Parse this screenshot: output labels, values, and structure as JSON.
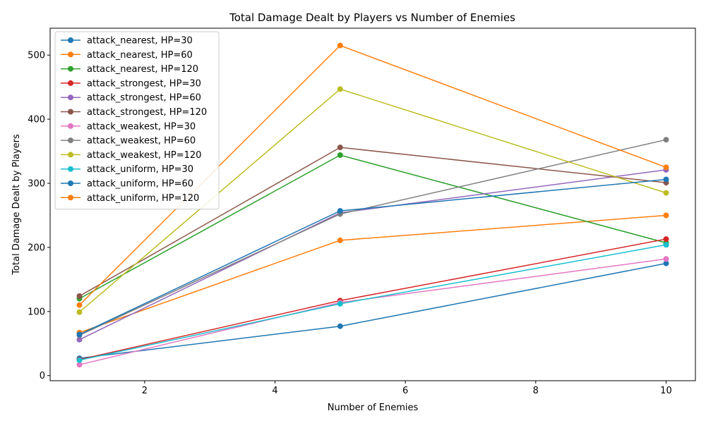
{
  "chart_data": {
    "type": "line",
    "title": "Total Damage Dealt by Players vs Number of Enemies",
    "xlabel": "Number of Enemies",
    "ylabel": "Total Damage Dealt by Players",
    "xlim": [
      0.55,
      10.45
    ],
    "ylim": [
      -8,
      542
    ],
    "xticks": [
      2,
      4,
      6,
      8,
      10
    ],
    "yticks": [
      0,
      100,
      200,
      300,
      400,
      500
    ],
    "grid": false,
    "legend_position": "top-left",
    "x": [
      1,
      5,
      10
    ],
    "series": [
      {
        "name": "attack_nearest, HP=30",
        "color": "#1f77b4",
        "values": [
          27,
          77,
          175
        ]
      },
      {
        "name": "attack_nearest, HP=60",
        "color": "#ff7f0e",
        "values": [
          67,
          211,
          250
        ]
      },
      {
        "name": "attack_nearest, HP=120",
        "color": "#2ca02c",
        "values": [
          120,
          344,
          207
        ]
      },
      {
        "name": "attack_strongest, HP=30",
        "color": "#d62728",
        "values": [
          25,
          117,
          213
        ]
      },
      {
        "name": "attack_strongest, HP=60",
        "color": "#9467bd",
        "values": [
          56,
          254,
          321
        ]
      },
      {
        "name": "attack_strongest, HP=120",
        "color": "#8c564b",
        "values": [
          124,
          356,
          301
        ]
      },
      {
        "name": "attack_weakest, HP=30",
        "color": "#e377c2",
        "values": [
          17,
          114,
          182
        ]
      },
      {
        "name": "attack_weakest, HP=60",
        "color": "#7f7f7f",
        "values": [
          63,
          252,
          368
        ]
      },
      {
        "name": "attack_weakest, HP=120",
        "color": "#bcbd22",
        "values": [
          99,
          447,
          285
        ]
      },
      {
        "name": "attack_uniform, HP=30",
        "color": "#17becf",
        "values": [
          24,
          112,
          204
        ]
      },
      {
        "name": "attack_uniform, HP=60",
        "color": "#1f77b4",
        "values": [
          64,
          257,
          306
        ]
      },
      {
        "name": "attack_uniform, HP=120",
        "color": "#ff7f0e",
        "values": [
          110,
          515,
          325
        ]
      }
    ]
  }
}
